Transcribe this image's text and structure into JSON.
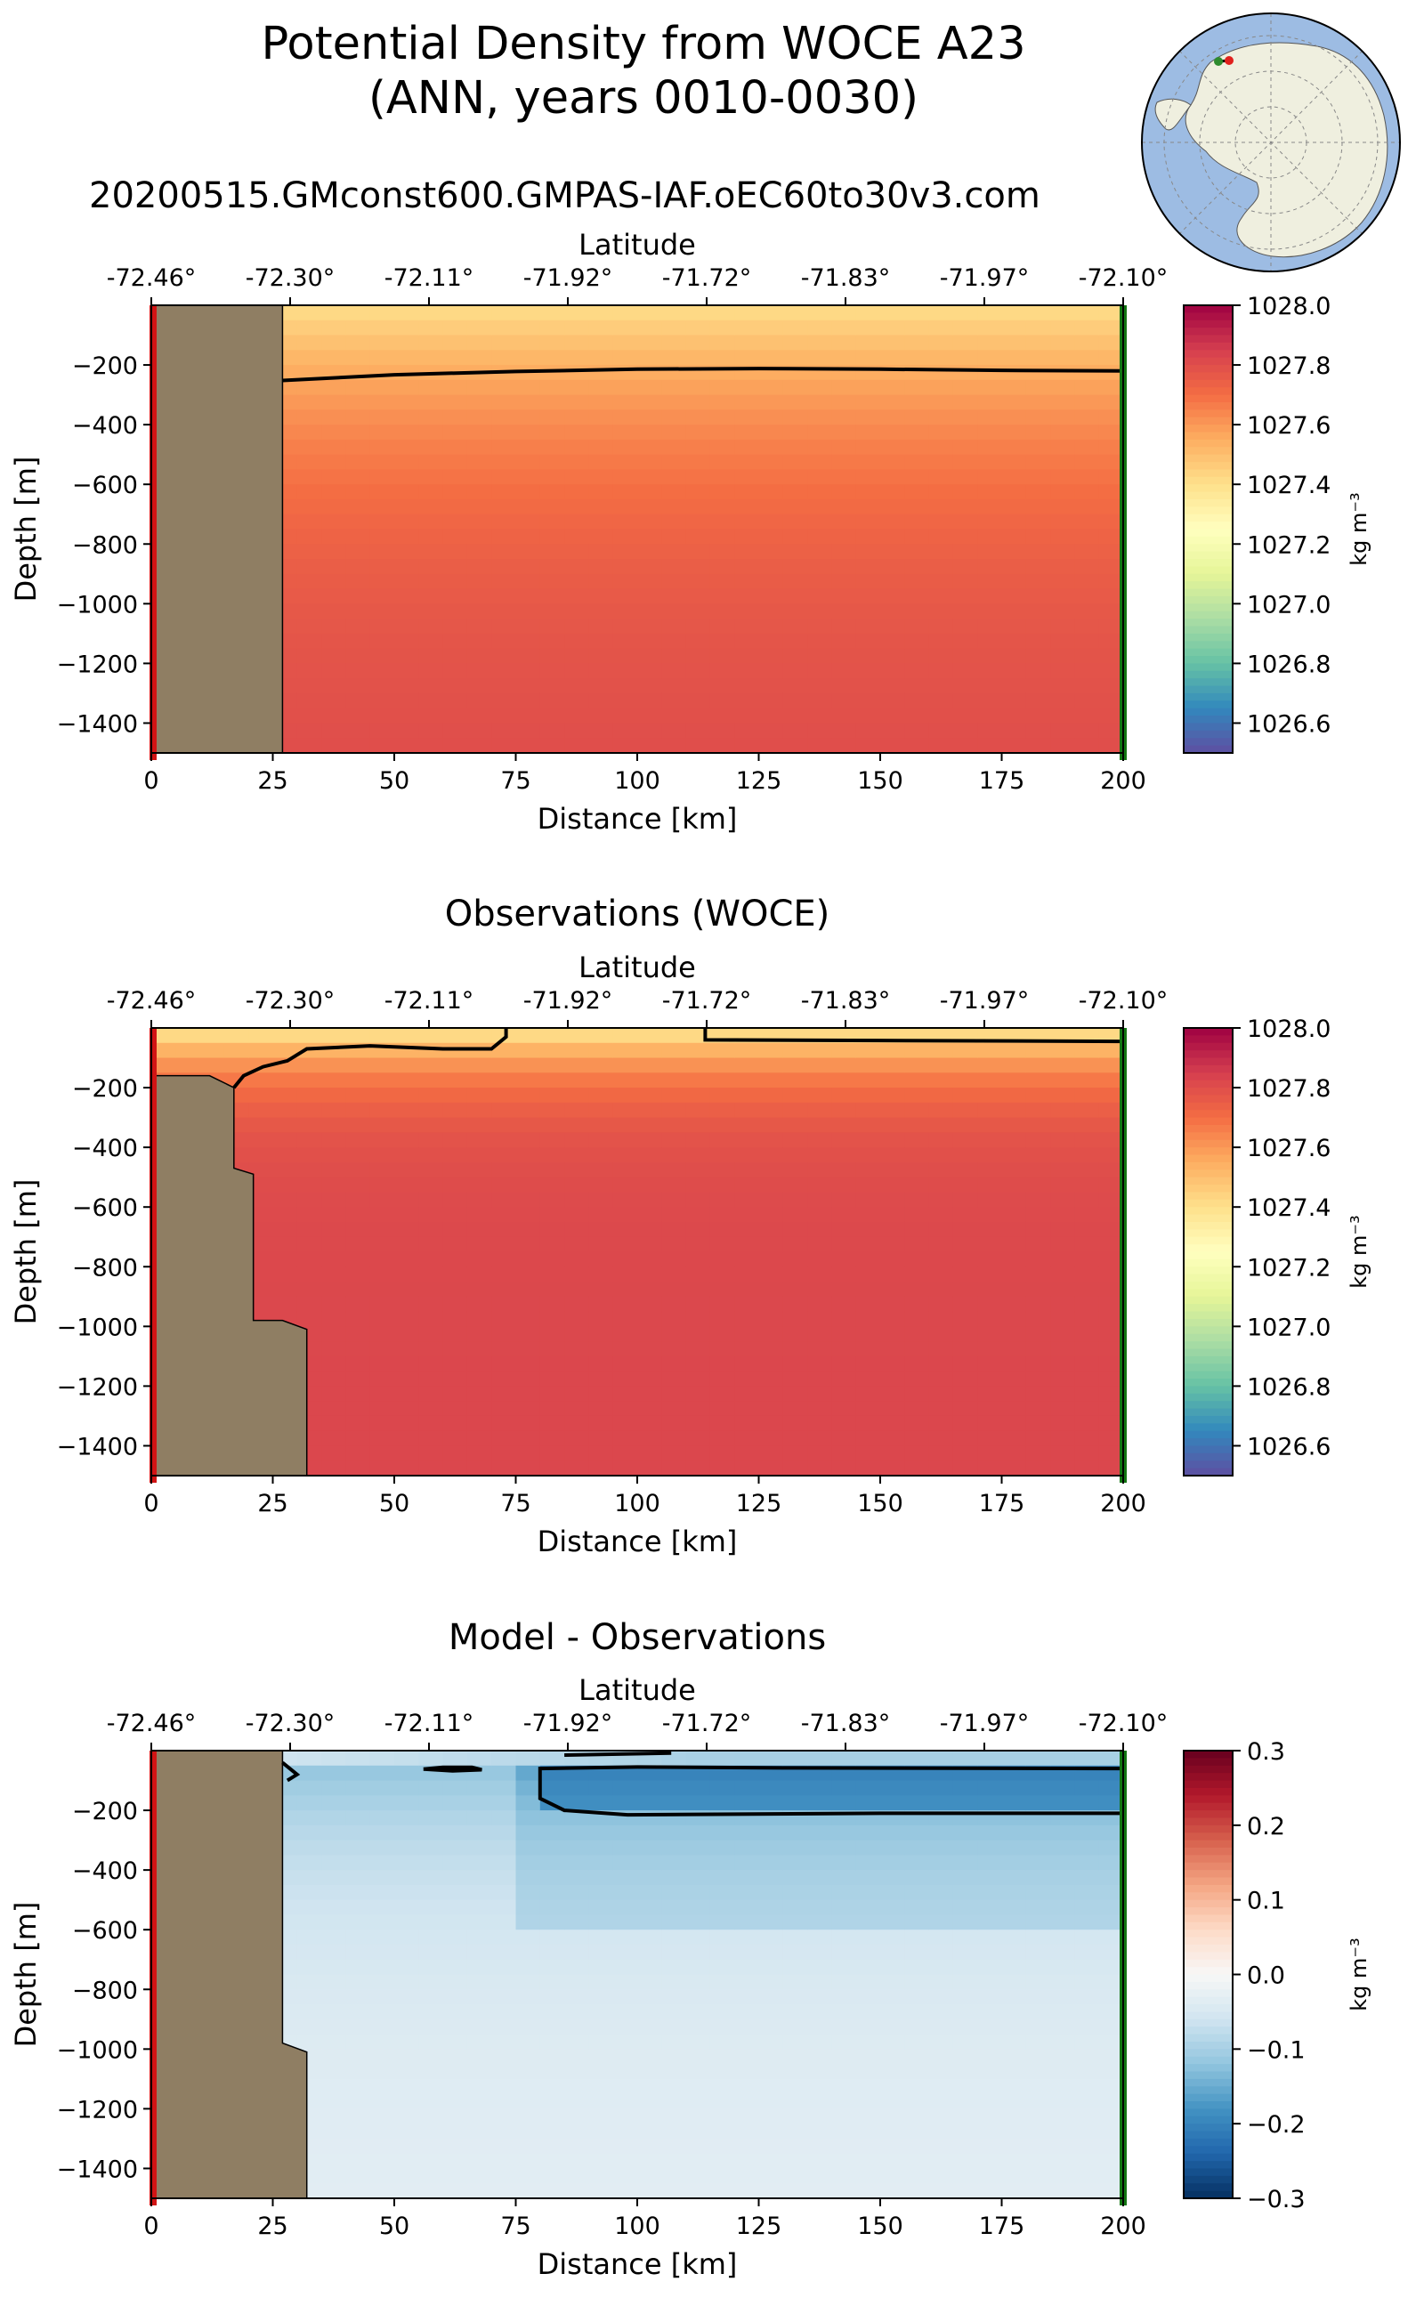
{
  "figure": {
    "title_line1": "Potential Density from WOCE A23",
    "title_line2": "(ANN, years 0010-0030)",
    "run_name": "20200515.GMconst600.GMPAS-IAF.oEC60to30v3.com"
  },
  "inset_map": {
    "description_icon": "antarctica-polar-map-icon",
    "start_marker_color": "#2e8b2e",
    "end_marker_color": "#e0201c"
  },
  "colors": {
    "land": "#8f7e63",
    "start_line": "#d21414",
    "end_line": "#127512"
  },
  "chart_data": [
    {
      "type": "heatmap",
      "title": "",
      "xlabel": "Distance [km]",
      "ylabel": "Depth [m]",
      "top_axis_label": "Latitude",
      "x_ticks": [
        0,
        25,
        50,
        75,
        100,
        125,
        150,
        175,
        200
      ],
      "x_tick_labels": [
        "0",
        "25",
        "50",
        "75",
        "100",
        "125",
        "150",
        "175",
        "200"
      ],
      "lat_tick_labels": [
        "-72.46°",
        "-72.30°",
        "-72.11°",
        "-71.92°",
        "-71.72°",
        "-71.83°",
        "-71.97°",
        "-72.10°"
      ],
      "y_ticks": [
        -200,
        -400,
        -600,
        -800,
        -1000,
        -1200,
        -1400
      ],
      "y_tick_labels": [
        "−200",
        "−400",
        "−600",
        "−800",
        "−1000",
        "−1200",
        "−1400"
      ],
      "xlim": [
        0,
        200
      ],
      "ylim": [
        -1500,
        0
      ],
      "colormap": "Spectral_r",
      "colorbar_label": "kg m⁻³",
      "colorbar_range": [
        1026.5,
        1028.0
      ],
      "colorbar_ticks": [
        1028.0,
        1027.8,
        1027.6,
        1027.4,
        1027.2,
        1027.0,
        1026.8,
        1026.6
      ],
      "colorbar_tick_labels": [
        "1028.0",
        "1027.8",
        "1027.6",
        "1027.4",
        "1027.2",
        "1027.0",
        "1026.8",
        "1026.6"
      ],
      "field": {
        "surface": 1027.4,
        "deep": 1027.82,
        "scale_m": 500
      },
      "land_polygon": [
        [
          0,
          0
        ],
        [
          27,
          0
        ],
        [
          27,
          -1500
        ],
        [
          0,
          -1500
        ]
      ],
      "contours": [
        {
          "level": 1027.7,
          "points": [
            [
              27,
              -252
            ],
            [
              50,
              -233
            ],
            [
              75,
              -222
            ],
            [
              100,
              -214
            ],
            [
              125,
              -212
            ],
            [
              150,
              -214
            ],
            [
              175,
              -218
            ],
            [
              200,
              -220
            ]
          ]
        }
      ]
    },
    {
      "type": "heatmap",
      "title": "Observations (WOCE)",
      "xlabel": "Distance [km]",
      "ylabel": "Depth [m]",
      "top_axis_label": "Latitude",
      "x_ticks": [
        0,
        25,
        50,
        75,
        100,
        125,
        150,
        175,
        200
      ],
      "x_tick_labels": [
        "0",
        "25",
        "50",
        "75",
        "100",
        "125",
        "150",
        "175",
        "200"
      ],
      "lat_tick_labels": [
        "-72.46°",
        "-72.30°",
        "-72.11°",
        "-71.92°",
        "-71.72°",
        "-71.83°",
        "-71.97°",
        "-72.10°"
      ],
      "y_ticks": [
        -200,
        -400,
        -600,
        -800,
        -1000,
        -1200,
        -1400
      ],
      "y_tick_labels": [
        "−200",
        "−400",
        "−600",
        "−800",
        "−1000",
        "−1200",
        "−1400"
      ],
      "xlim": [
        0,
        200
      ],
      "ylim": [
        -1500,
        0
      ],
      "colormap": "Spectral_r",
      "colorbar_label": "kg m⁻³",
      "colorbar_range": [
        1026.5,
        1028.0
      ],
      "colorbar_ticks": [
        1028.0,
        1027.8,
        1027.6,
        1027.4,
        1027.2,
        1027.0,
        1026.8,
        1026.6
      ],
      "colorbar_tick_labels": [
        "1028.0",
        "1027.8",
        "1027.6",
        "1027.4",
        "1027.2",
        "1027.0",
        "1026.8",
        "1026.6"
      ],
      "field": {
        "surface": 1027.35,
        "deep": 1027.82,
        "scale_m": 150
      },
      "land_polygon": [
        [
          0,
          0
        ],
        [
          0,
          -160
        ],
        [
          12,
          -160
        ],
        [
          17,
          -200
        ],
        [
          17,
          -470
        ],
        [
          21,
          -490
        ],
        [
          21,
          -980
        ],
        [
          27,
          -980
        ],
        [
          32,
          -1010
        ],
        [
          32,
          -1500
        ],
        [
          0,
          -1500
        ]
      ],
      "contours": [
        {
          "level": 1027.7,
          "points": [
            [
              17,
              -200
            ],
            [
              19,
              -160
            ],
            [
              23,
              -130
            ],
            [
              28,
              -110
            ],
            [
              32,
              -70
            ],
            [
              45,
              -60
            ],
            [
              60,
              -70
            ],
            [
              70,
              -70
            ],
            [
              73,
              -30
            ],
            [
              73,
              0
            ]
          ]
        },
        {
          "level": 1027.7,
          "points": [
            [
              114,
              0
            ],
            [
              114,
              -40
            ],
            [
              150,
              -42
            ],
            [
              200,
              -45
            ]
          ]
        }
      ]
    },
    {
      "type": "heatmap",
      "title": "Model - Observations",
      "xlabel": "Distance [km]",
      "ylabel": "Depth [m]",
      "top_axis_label": "Latitude",
      "x_ticks": [
        0,
        25,
        50,
        75,
        100,
        125,
        150,
        175,
        200
      ],
      "x_tick_labels": [
        "0",
        "25",
        "50",
        "75",
        "100",
        "125",
        "150",
        "175",
        "200"
      ],
      "lat_tick_labels": [
        "-72.46°",
        "-72.30°",
        "-72.11°",
        "-71.92°",
        "-71.72°",
        "-71.83°",
        "-71.97°",
        "-72.10°"
      ],
      "y_ticks": [
        -200,
        -400,
        -600,
        -800,
        -1000,
        -1200,
        -1400
      ],
      "y_tick_labels": [
        "−200",
        "−400",
        "−600",
        "−800",
        "−1000",
        "−1200",
        "−1400"
      ],
      "xlim": [
        0,
        200
      ],
      "ylim": [
        -1500,
        0
      ],
      "colormap": "RdBu_r",
      "colorbar_label": "kg m⁻³",
      "colorbar_range": [
        -0.3,
        0.3
      ],
      "colorbar_ticks": [
        0.3,
        0.2,
        0.1,
        0.0,
        -0.1,
        -0.2,
        -0.3
      ],
      "colorbar_tick_labels": [
        "0.3",
        "0.2",
        "0.1",
        "0.0",
        "−0.1",
        "−0.2",
        "−0.3"
      ],
      "land_polygon": [
        [
          0,
          0
        ],
        [
          27,
          0
        ],
        [
          27,
          -980
        ],
        [
          32,
          -1010
        ],
        [
          32,
          -1500
        ],
        [
          0,
          -1500
        ]
      ],
      "contours": [
        {
          "level": -0.2,
          "points": [
            [
              80,
              -90
            ],
            [
              80,
              -60
            ],
            [
              100,
              -55
            ],
            [
              130,
              -58
            ],
            [
              200,
              -60
            ],
            [
              200,
              -210
            ],
            [
              150,
              -210
            ],
            [
              98,
              -215
            ],
            [
              85,
              -200
            ],
            [
              80,
              -160
            ],
            [
              80,
              -90
            ]
          ]
        },
        {
          "level": -0.2,
          "points": [
            [
              56,
              -62
            ],
            [
              60,
              -56
            ],
            [
              66,
              -56
            ],
            [
              68,
              -64
            ],
            [
              62,
              -68
            ],
            [
              56,
              -62
            ]
          ]
        },
        {
          "level": -0.2,
          "points": [
            [
              27,
              -40
            ],
            [
              30,
              -80
            ],
            [
              28,
              -100
            ]
          ]
        },
        {
          "level": -0.2,
          "points": [
            [
              85,
              -15
            ],
            [
              107,
              -8
            ]
          ]
        }
      ]
    }
  ]
}
